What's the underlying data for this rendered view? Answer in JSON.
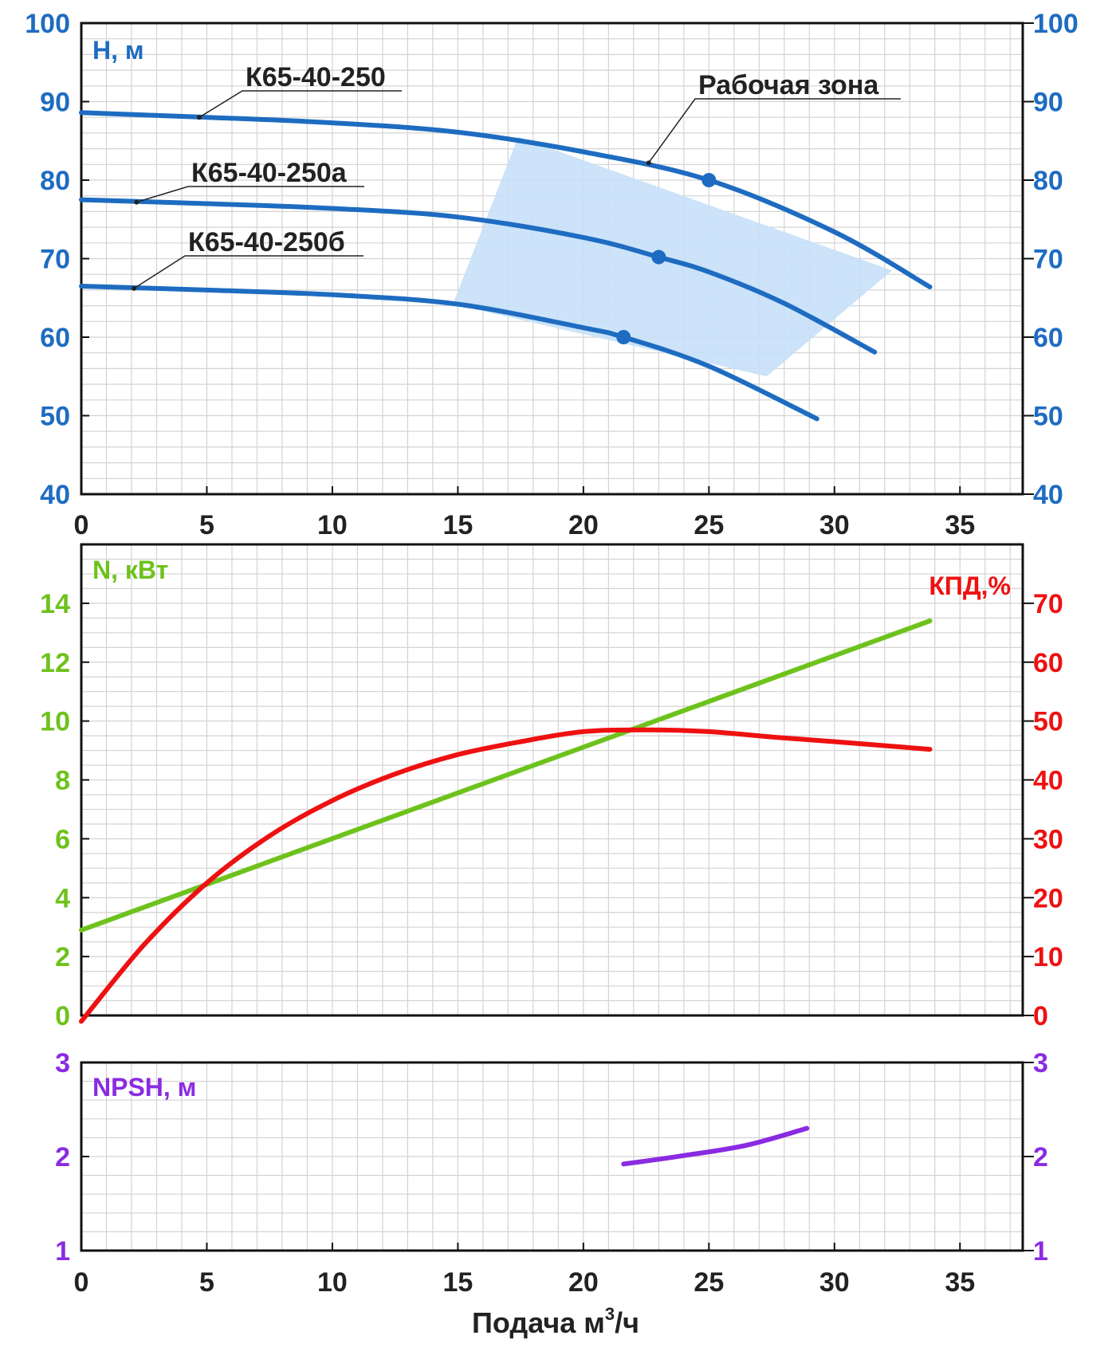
{
  "colors": {
    "head": "#1e6cc1",
    "zone": "#c7e0f8",
    "power": "#6ec21c",
    "efficiency": "#ee1111",
    "npsh": "#8a2be2",
    "grid": "#d3d3d3",
    "frame": "#111111"
  },
  "x_axis": {
    "ticks": [
      0,
      5,
      10,
      15,
      20,
      25,
      30,
      35
    ],
    "xlim": [
      0,
      37.5
    ],
    "label_main": "Подача м",
    "label_sup": "3",
    "label_tail": "/ч"
  },
  "chart_data": [
    {
      "type": "line",
      "ylabel": "H, м",
      "ylim": [
        40,
        100
      ],
      "yticks": [
        40,
        50,
        60,
        70,
        80,
        90,
        100
      ],
      "grid": true,
      "series": [
        {
          "name": "К65-40-250",
          "x": [
            0,
            5,
            10,
            15,
            20,
            25,
            30,
            33.8
          ],
          "y": [
            88.6,
            88,
            87.3,
            86.1,
            83.6,
            80,
            73.4,
            66.4
          ],
          "bep": [
            25,
            80
          ]
        },
        {
          "name": "К65-40-250а",
          "x": [
            0,
            5,
            10,
            15,
            20,
            23,
            25,
            28,
            31.6
          ],
          "y": [
            77.5,
            77,
            76.4,
            75.3,
            72.7,
            70.2,
            68.3,
            64.3,
            58.1
          ],
          "bep": [
            23,
            70.2
          ]
        },
        {
          "name": "К65-40-250б",
          "x": [
            0,
            5,
            10,
            15,
            20,
            21.6,
            25,
            29.3
          ],
          "y": [
            66.5,
            66,
            65.4,
            64.2,
            61.2,
            60,
            56.3,
            49.6
          ],
          "bep": [
            21.6,
            60
          ]
        }
      ],
      "work_zone": {
        "name": "Рабочая зона",
        "polygon": [
          [
            17.4,
            85.5
          ],
          [
            32.3,
            68.5
          ],
          [
            27.3,
            55
          ],
          [
            14.8,
            64.2
          ]
        ]
      }
    },
    {
      "type": "line",
      "ylabel_left": "N, кВт",
      "ylabel_right": "КПД,%",
      "ylim_left": [
        0,
        16
      ],
      "yticks_left": [
        0,
        2,
        4,
        6,
        8,
        10,
        12,
        14
      ],
      "ylim_right": [
        0,
        80
      ],
      "yticks_right": [
        0,
        10,
        20,
        30,
        40,
        50,
        60,
        70
      ],
      "grid": true,
      "series": [
        {
          "name": "N",
          "axis": "left",
          "x": [
            0,
            33.8
          ],
          "y": [
            2.9,
            13.4
          ]
        },
        {
          "name": "КПД",
          "axis": "right",
          "x": [
            0,
            2.5,
            5,
            7.5,
            10,
            12.5,
            15,
            17.5,
            20,
            22.5,
            25,
            27.5,
            30,
            33.8
          ],
          "y": [
            -1,
            12,
            22.5,
            30.5,
            36.5,
            41,
            44.3,
            46.5,
            48.2,
            48.5,
            48.2,
            47.3,
            46.5,
            45.2
          ]
        }
      ]
    },
    {
      "type": "line",
      "ylabel": "NPSH, м",
      "ylim": [
        1,
        3
      ],
      "yticks": [
        1,
        2,
        3
      ],
      "grid": true,
      "series": [
        {
          "name": "NPSH",
          "x": [
            21.6,
            24,
            26.5,
            28.9
          ],
          "y": [
            1.92,
            2.01,
            2.12,
            2.3
          ]
        }
      ]
    }
  ]
}
